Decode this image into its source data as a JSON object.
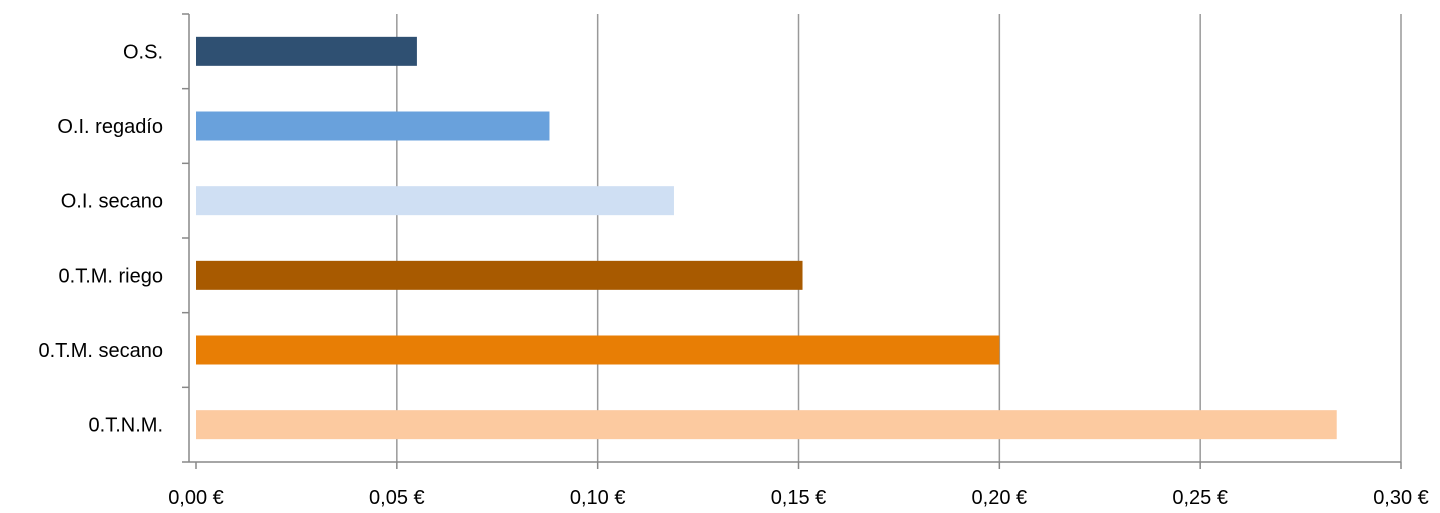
{
  "chart_data": {
    "type": "bar",
    "orientation": "horizontal",
    "title": "",
    "xlabel": "",
    "ylabel": "",
    "categories": [
      "O.S.",
      "O.I. regadío",
      "O.I. secano",
      "0.T.M. riego",
      "0.T.M. secano",
      "0.T.N.M."
    ],
    "values": [
      0.055,
      0.088,
      0.119,
      0.151,
      0.2,
      0.284
    ],
    "colors": [
      "#2f5072",
      "#69a1dc",
      "#cfdff3",
      "#a85a00",
      "#e87e05",
      "#fccaa0"
    ],
    "xlim": [
      0,
      0.3
    ],
    "xticks": [
      0,
      0.05,
      0.1,
      0.15,
      0.2,
      0.25,
      0.3
    ],
    "xtick_labels": [
      "0,00 €",
      "0,05 €",
      "0,10 €",
      "0,15 €",
      "0,20 €",
      "0,25 €",
      "0,30 €"
    ],
    "grid": "vertical",
    "legend": "none",
    "gridline_color": "#999999",
    "axis_color": "#888888"
  }
}
